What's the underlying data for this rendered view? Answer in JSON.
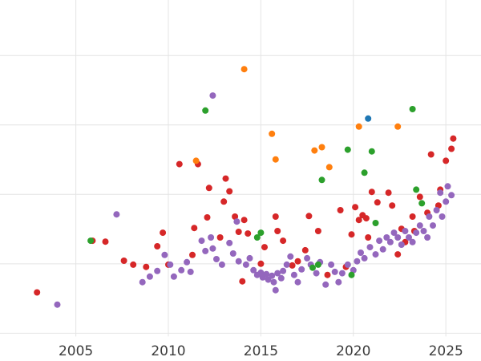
{
  "chart_data": {
    "type": "scatter",
    "title": "",
    "xlabel": "",
    "ylabel": "",
    "xlim": [
      2000.9,
      2026.9
    ],
    "ylim": [
      -10,
      120
    ],
    "xticks": [
      2005,
      2010,
      2015,
      2020,
      2025
    ],
    "ygrid": [
      0,
      25,
      50,
      75,
      100
    ],
    "grid": true,
    "legend": "none",
    "point_radius": 4,
    "series": [
      {
        "name": "red",
        "color": "#d62728",
        "points": [
          [
            2002.9,
            14.7
          ],
          [
            2005.9,
            33.3
          ],
          [
            2006.6,
            33.0
          ],
          [
            2007.6,
            26.1
          ],
          [
            2008.1,
            24.7
          ],
          [
            2008.8,
            23.9
          ],
          [
            2009.4,
            31.3
          ],
          [
            2009.7,
            36.2
          ],
          [
            2010.0,
            24.7
          ],
          [
            2010.6,
            60.9
          ],
          [
            2011.3,
            28.2
          ],
          [
            2011.4,
            37.9
          ],
          [
            2011.6,
            60.9
          ],
          [
            2012.1,
            41.7
          ],
          [
            2012.2,
            52.3
          ],
          [
            2012.8,
            34.5
          ],
          [
            2013.0,
            47.4
          ],
          [
            2013.1,
            55.7
          ],
          [
            2013.3,
            51.1
          ],
          [
            2013.6,
            42.0
          ],
          [
            2013.8,
            36.5
          ],
          [
            2014.0,
            18.7
          ],
          [
            2014.1,
            40.8
          ],
          [
            2014.3,
            35.9
          ],
          [
            2015.0,
            25.0
          ],
          [
            2015.2,
            31.0
          ],
          [
            2015.8,
            42.0
          ],
          [
            2015.9,
            36.8
          ],
          [
            2016.2,
            33.3
          ],
          [
            2016.7,
            24.4
          ],
          [
            2017.0,
            25.9
          ],
          [
            2017.4,
            29.9
          ],
          [
            2017.6,
            42.2
          ],
          [
            2018.1,
            36.8
          ],
          [
            2018.6,
            21.0
          ],
          [
            2019.3,
            44.3
          ],
          [
            2019.6,
            23.9
          ],
          [
            2019.9,
            35.6
          ],
          [
            2020.1,
            45.4
          ],
          [
            2020.3,
            40.8
          ],
          [
            2020.5,
            42.5
          ],
          [
            2020.7,
            41.4
          ],
          [
            2020.8,
            34.5
          ],
          [
            2021.0,
            50.9
          ],
          [
            2021.3,
            47.1
          ],
          [
            2021.9,
            50.6
          ],
          [
            2022.1,
            46.0
          ],
          [
            2022.4,
            28.4
          ],
          [
            2022.6,
            37.6
          ],
          [
            2022.8,
            32.8
          ],
          [
            2023.2,
            42.0
          ],
          [
            2023.3,
            36.8
          ],
          [
            2023.6,
            49.1
          ],
          [
            2024.0,
            43.4
          ],
          [
            2024.2,
            64.4
          ],
          [
            2024.6,
            46.0
          ],
          [
            2024.7,
            51.7
          ],
          [
            2025.0,
            62.1
          ],
          [
            2025.3,
            66.4
          ],
          [
            2025.4,
            70.1
          ]
        ]
      },
      {
        "name": "purple",
        "color": "#9467bd",
        "points": [
          [
            2004.0,
            10.3
          ],
          [
            2007.2,
            42.8
          ],
          [
            2008.6,
            18.4
          ],
          [
            2009.0,
            20.4
          ],
          [
            2009.4,
            22.4
          ],
          [
            2009.8,
            28.2
          ],
          [
            2010.1,
            24.7
          ],
          [
            2010.3,
            20.4
          ],
          [
            2010.7,
            22.7
          ],
          [
            2011.0,
            25.6
          ],
          [
            2011.2,
            22.1
          ],
          [
            2011.8,
            33.3
          ],
          [
            2012.0,
            29.6
          ],
          [
            2012.3,
            34.5
          ],
          [
            2012.4,
            85.6
          ],
          [
            2012.4,
            30.5
          ],
          [
            2012.6,
            26.7
          ],
          [
            2012.9,
            24.7
          ],
          [
            2013.3,
            32.5
          ],
          [
            2013.5,
            28.7
          ],
          [
            2013.7,
            40.2
          ],
          [
            2013.8,
            25.9
          ],
          [
            2014.2,
            24.7
          ],
          [
            2014.4,
            27.0
          ],
          [
            2014.6,
            22.7
          ],
          [
            2014.8,
            21.0
          ],
          [
            2015.0,
            21.8
          ],
          [
            2015.1,
            20.1
          ],
          [
            2015.3,
            21.3
          ],
          [
            2015.4,
            19.3
          ],
          [
            2015.6,
            20.7
          ],
          [
            2015.7,
            18.4
          ],
          [
            2015.8,
            15.5
          ],
          [
            2015.9,
            21.6
          ],
          [
            2016.1,
            19.8
          ],
          [
            2016.2,
            22.4
          ],
          [
            2016.4,
            24.7
          ],
          [
            2016.6,
            27.6
          ],
          [
            2016.8,
            21.0
          ],
          [
            2017.0,
            18.4
          ],
          [
            2017.2,
            23.0
          ],
          [
            2017.5,
            27.0
          ],
          [
            2017.7,
            24.7
          ],
          [
            2018.0,
            21.6
          ],
          [
            2018.2,
            25.6
          ],
          [
            2018.5,
            17.5
          ],
          [
            2018.8,
            24.7
          ],
          [
            2019.0,
            22.1
          ],
          [
            2019.2,
            18.4
          ],
          [
            2019.4,
            21.6
          ],
          [
            2019.7,
            24.7
          ],
          [
            2020.0,
            22.7
          ],
          [
            2020.2,
            25.9
          ],
          [
            2020.4,
            29.0
          ],
          [
            2020.6,
            27.0
          ],
          [
            2020.9,
            31.0
          ],
          [
            2021.2,
            28.4
          ],
          [
            2021.4,
            33.3
          ],
          [
            2021.6,
            30.2
          ],
          [
            2021.8,
            34.5
          ],
          [
            2022.0,
            32.8
          ],
          [
            2022.2,
            36.2
          ],
          [
            2022.4,
            34.5
          ],
          [
            2022.6,
            31.9
          ],
          [
            2022.8,
            36.8
          ],
          [
            2023.0,
            34.5
          ],
          [
            2023.2,
            32.8
          ],
          [
            2023.4,
            36.2
          ],
          [
            2023.6,
            38.8
          ],
          [
            2023.8,
            36.8
          ],
          [
            2024.0,
            34.5
          ],
          [
            2024.1,
            42.0
          ],
          [
            2024.3,
            38.8
          ],
          [
            2024.5,
            44.3
          ],
          [
            2024.7,
            50.6
          ],
          [
            2024.8,
            42.0
          ],
          [
            2025.0,
            47.4
          ],
          [
            2025.1,
            52.9
          ],
          [
            2025.3,
            49.7
          ]
        ]
      },
      {
        "name": "green",
        "color": "#2ca02c",
        "points": [
          [
            2005.8,
            33.3
          ],
          [
            2012.0,
            80.2
          ],
          [
            2014.8,
            34.5
          ],
          [
            2015.0,
            36.2
          ],
          [
            2017.8,
            23.6
          ],
          [
            2018.1,
            24.7
          ],
          [
            2018.3,
            55.2
          ],
          [
            2019.7,
            66.1
          ],
          [
            2019.9,
            21.0
          ],
          [
            2020.6,
            57.8
          ],
          [
            2021.0,
            65.5
          ],
          [
            2021.2,
            39.7
          ],
          [
            2023.2,
            80.7
          ],
          [
            2023.4,
            51.7
          ],
          [
            2023.7,
            46.8
          ]
        ]
      },
      {
        "name": "orange",
        "color": "#ff7f0e",
        "points": [
          [
            2011.5,
            62.1
          ],
          [
            2014.1,
            95.1
          ],
          [
            2015.6,
            71.8
          ],
          [
            2015.8,
            62.6
          ],
          [
            2017.9,
            65.8
          ],
          [
            2018.3,
            67.0
          ],
          [
            2018.7,
            59.8
          ],
          [
            2020.3,
            74.4
          ],
          [
            2022.4,
            74.4
          ]
        ]
      },
      {
        "name": "blue",
        "color": "#1f77b4",
        "points": [
          [
            2020.8,
            77.3
          ]
        ]
      }
    ]
  },
  "colors": {
    "background": "#ffffff",
    "grid": "#e4e4e4",
    "tick_label": "#3c3c3c"
  }
}
